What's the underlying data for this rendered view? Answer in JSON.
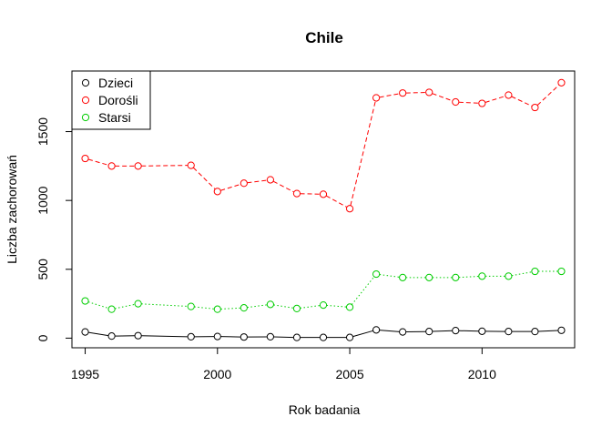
{
  "chart_data": {
    "type": "line",
    "title": "Chile",
    "xlabel": "Rok badania",
    "ylabel": "Liczba zachorowań",
    "xlim": [
      1994.5,
      2013.5
    ],
    "ylim": [
      -70,
      1940
    ],
    "x_ticks": [
      1995,
      2000,
      2005,
      2010
    ],
    "y_ticks": [
      0,
      500,
      1000,
      1500
    ],
    "grid": false,
    "legend_position": "top-left",
    "series": [
      {
        "name": "Dzieci",
        "color": "#000000",
        "line_style": "solid",
        "marker": "open-circle",
        "x": [
          1995,
          1996,
          1997,
          1999,
          2000,
          2001,
          2002,
          2003,
          2004,
          2005,
          2006,
          2007,
          2008,
          2009,
          2010,
          2011,
          2012,
          2013
        ],
        "y": [
          45,
          15,
          18,
          10,
          12,
          8,
          10,
          5,
          5,
          5,
          60,
          45,
          48,
          55,
          50,
          48,
          48,
          57
        ]
      },
      {
        "name": "Dorośli",
        "color": "#ff0000",
        "line_style": "dashed",
        "marker": "open-circle",
        "x": [
          1995,
          1996,
          1997,
          1999,
          2000,
          2001,
          2002,
          2003,
          2004,
          2005,
          2006,
          2007,
          2008,
          2009,
          2010,
          2011,
          2012,
          2013
        ],
        "y": [
          1305,
          1250,
          1250,
          1255,
          1065,
          1125,
          1150,
          1050,
          1045,
          940,
          1745,
          1780,
          1785,
          1715,
          1705,
          1765,
          1675,
          1855
        ]
      },
      {
        "name": "Starsi",
        "color": "#00cd00",
        "line_style": "dotted",
        "marker": "open-circle",
        "x": [
          1995,
          1996,
          1997,
          1999,
          2000,
          2001,
          2002,
          2003,
          2004,
          2005,
          2006,
          2007,
          2008,
          2009,
          2010,
          2011,
          2012,
          2013
        ],
        "y": [
          270,
          210,
          250,
          230,
          210,
          220,
          245,
          215,
          240,
          225,
          465,
          440,
          440,
          440,
          450,
          450,
          485,
          485
        ]
      }
    ]
  }
}
